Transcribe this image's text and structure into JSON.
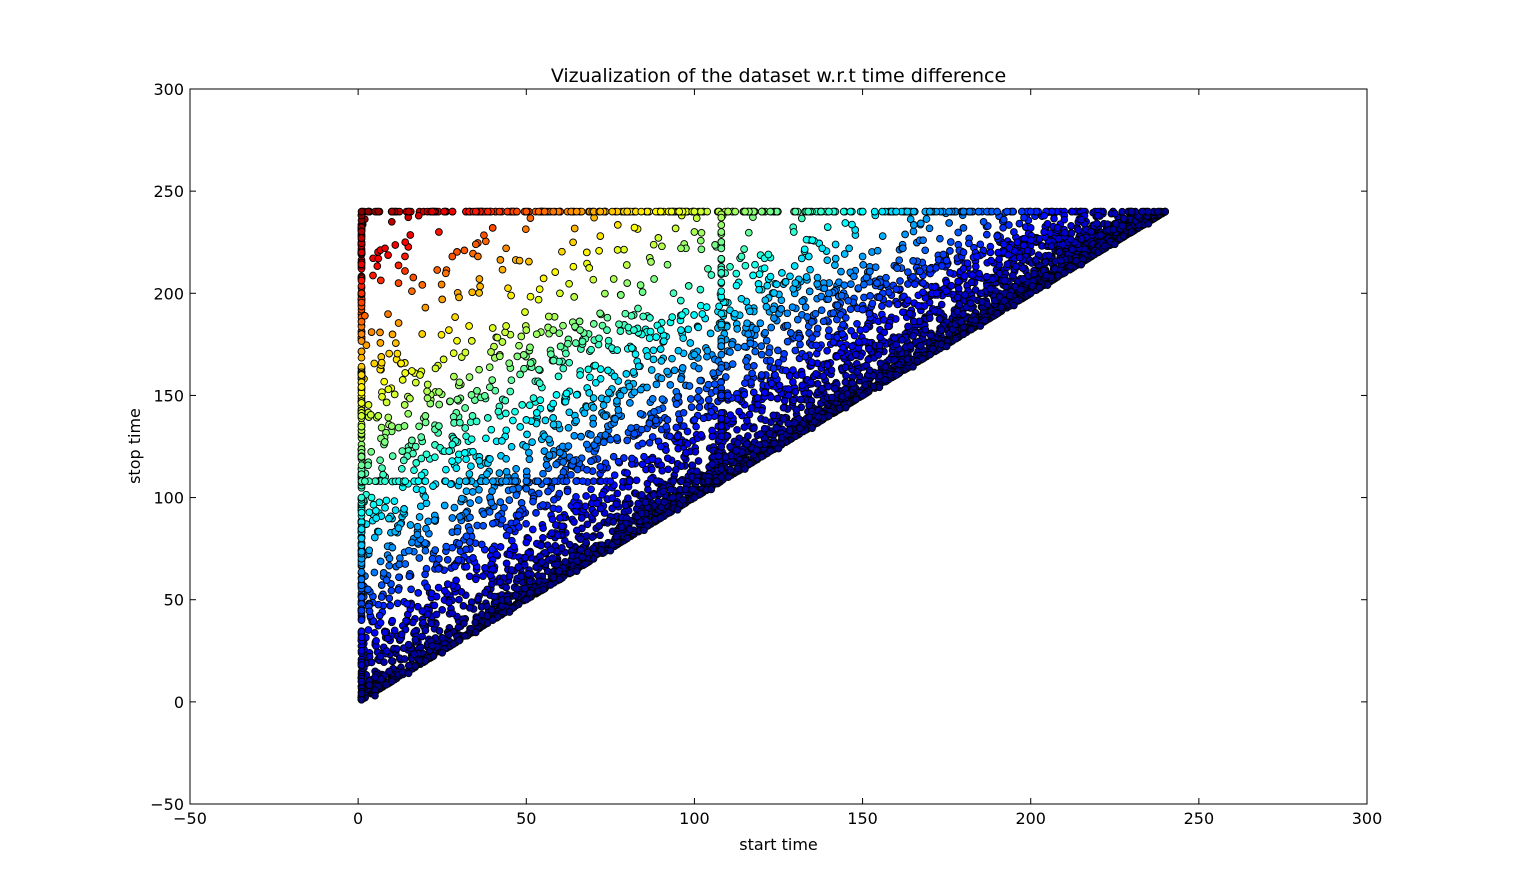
{
  "chart_data": {
    "type": "scatter",
    "title": "Vizualization of the dataset w.r.t time difference",
    "xlabel": "start time",
    "ylabel": "stop time",
    "xlim": [
      -50,
      300
    ],
    "ylim": [
      -50,
      300
    ],
    "xticks": [
      -50,
      0,
      50,
      100,
      150,
      200,
      250,
      300
    ],
    "yticks": [
      -50,
      0,
      50,
      100,
      150,
      200,
      250,
      300
    ],
    "xtick_labels": [
      "−50",
      "0",
      "50",
      "100",
      "150",
      "200",
      "250",
      "300"
    ],
    "ytick_labels": [
      "−50",
      "0",
      "50",
      "100",
      "150",
      "200",
      "250",
      "300"
    ],
    "grid": false,
    "legend": "none",
    "colormap": "jet",
    "color_encoding": "stop time - start time",
    "x_max": 240,
    "y_max": 240,
    "series": [
      {
        "points": [
          [
            1,
            1
          ],
          [
            1,
            10
          ],
          [
            1,
            25
          ],
          [
            1,
            40
          ],
          [
            1,
            60
          ],
          [
            1,
            80
          ],
          [
            1,
            100
          ],
          [
            1,
            108
          ],
          [
            1,
            120
          ],
          [
            1,
            140
          ],
          [
            1,
            160
          ],
          [
            1,
            180
          ],
          [
            1,
            200
          ],
          [
            1,
            220
          ],
          [
            1,
            240
          ],
          [
            3,
            240
          ],
          [
            6,
            240
          ],
          [
            10,
            240
          ],
          [
            15,
            240
          ],
          [
            22,
            240
          ],
          [
            28,
            240
          ],
          [
            35,
            240
          ],
          [
            42,
            240
          ],
          [
            50,
            240
          ],
          [
            58,
            240
          ],
          [
            65,
            240
          ],
          [
            72,
            240
          ],
          [
            80,
            240
          ],
          [
            90,
            240
          ],
          [
            100,
            240
          ],
          [
            110,
            240
          ],
          [
            120,
            240
          ],
          [
            130,
            240
          ],
          [
            140,
            240
          ],
          [
            150,
            240
          ],
          [
            160,
            240
          ],
          [
            170,
            240
          ],
          [
            180,
            240
          ],
          [
            190,
            240
          ],
          [
            200,
            240
          ],
          [
            210,
            240
          ],
          [
            220,
            240
          ],
          [
            230,
            240
          ],
          [
            240,
            240
          ],
          [
            10,
            235
          ],
          [
            14,
            225
          ],
          [
            18,
            238
          ],
          [
            6,
            217
          ],
          [
            8,
            222
          ],
          [
            12,
            205
          ],
          [
            16,
            201
          ],
          [
            4,
            181
          ],
          [
            2,
            189
          ],
          [
            7,
            166
          ],
          [
            9,
            153
          ],
          [
            14,
            161
          ],
          [
            20,
            193
          ],
          [
            24,
            230
          ],
          [
            28,
            218
          ],
          [
            35,
            224
          ],
          [
            40,
            232
          ],
          [
            44,
            222
          ],
          [
            48,
            216
          ],
          [
            27,
            182
          ],
          [
            33,
            184
          ],
          [
            40,
            183
          ],
          [
            44,
            184
          ],
          [
            50,
            182
          ],
          [
            58,
            182
          ],
          [
            66,
            182
          ],
          [
            74,
            182
          ],
          [
            82,
            182
          ],
          [
            90,
            182
          ],
          [
            96,
            182
          ],
          [
            25,
            197
          ],
          [
            30,
            198
          ],
          [
            54,
            202
          ],
          [
            60,
            200
          ],
          [
            64,
            213
          ],
          [
            68,
            220
          ],
          [
            72,
            228
          ],
          [
            76,
            207
          ],
          [
            80,
            205
          ],
          [
            84,
            204
          ],
          [
            88,
            207
          ],
          [
            92,
            214
          ],
          [
            96,
            222
          ],
          [
            100,
            230
          ],
          [
            104,
            212
          ],
          [
            2,
            108
          ],
          [
            8,
            108
          ],
          [
            14,
            108
          ],
          [
            20,
            108
          ],
          [
            26,
            108
          ],
          [
            32,
            108
          ],
          [
            38,
            108
          ],
          [
            44,
            108
          ],
          [
            50,
            108
          ],
          [
            56,
            108
          ],
          [
            62,
            108
          ],
          [
            70,
            108
          ],
          [
            108,
            110
          ],
          [
            108,
            130
          ],
          [
            108,
            150
          ],
          [
            108,
            170
          ],
          [
            108,
            190
          ],
          [
            108,
            210
          ],
          [
            108,
            230
          ],
          [
            6,
            140
          ],
          [
            10,
            135
          ],
          [
            16,
            128
          ],
          [
            20,
            140
          ],
          [
            24,
            135
          ],
          [
            28,
            126
          ],
          [
            34,
            140
          ],
          [
            38,
            129
          ],
          [
            44,
            119
          ],
          [
            50,
            138
          ],
          [
            54,
            156
          ],
          [
            58,
            146
          ],
          [
            62,
            151
          ],
          [
            66,
            160
          ],
          [
            70,
            144
          ],
          [
            74,
            148
          ],
          [
            78,
            150
          ],
          [
            84,
            141
          ],
          [
            88,
            142
          ],
          [
            92,
            138
          ],
          [
            96,
            158
          ],
          [
            100,
            170
          ],
          [
            4,
            100
          ],
          [
            8,
            95
          ],
          [
            12,
            85
          ],
          [
            16,
            78
          ],
          [
            20,
            74
          ],
          [
            24,
            70
          ],
          [
            28,
            90
          ],
          [
            36,
            118
          ],
          [
            42,
            112
          ],
          [
            46,
            104
          ],
          [
            52,
            98
          ],
          [
            56,
            116
          ],
          [
            60,
            122
          ],
          [
            64,
            118
          ],
          [
            68,
            126
          ],
          [
            72,
            115
          ],
          [
            76,
            120
          ],
          [
            80,
            128
          ],
          [
            114,
            218
          ],
          [
            118,
            214
          ],
          [
            122,
            219
          ],
          [
            126,
            210
          ],
          [
            130,
            205
          ],
          [
            134,
            218
          ],
          [
            138,
            222
          ],
          [
            142,
            217
          ],
          [
            146,
            222
          ],
          [
            150,
            218
          ],
          [
            156,
            228
          ],
          [
            162,
            222
          ],
          [
            168,
            226
          ],
          [
            174,
            219
          ],
          [
            180,
            232
          ],
          [
            186,
            235
          ],
          [
            192,
            236
          ],
          [
            198,
            237
          ],
          [
            204,
            238
          ],
          [
            210,
            238
          ],
          [
            216,
            238
          ],
          [
            224,
            239
          ],
          [
            112,
            190
          ],
          [
            116,
            180
          ],
          [
            120,
            170
          ],
          [
            124,
            160
          ],
          [
            128,
            150
          ],
          [
            132,
            160
          ],
          [
            136,
            190
          ],
          [
            140,
            200
          ],
          [
            144,
            180
          ],
          [
            148,
            170
          ],
          [
            152,
            190
          ],
          [
            156,
            200
          ],
          [
            160,
            175
          ],
          [
            164,
            190
          ],
          [
            168,
            205
          ],
          [
            172,
            200
          ],
          [
            176,
            210
          ],
          [
            180,
            212
          ],
          [
            184,
            218
          ],
          [
            188,
            220
          ],
          [
            192,
            224
          ],
          [
            196,
            225
          ],
          [
            200,
            226
          ],
          [
            204,
            230
          ],
          [
            208,
            232
          ],
          [
            212,
            233
          ],
          [
            216,
            234
          ],
          [
            5,
            3
          ],
          [
            5,
            12
          ],
          [
            10,
            10
          ],
          [
            10,
            20
          ],
          [
            15,
            14
          ],
          [
            15,
            28
          ],
          [
            20,
            20
          ],
          [
            20,
            35
          ],
          [
            25,
            24
          ],
          [
            25,
            45
          ],
          [
            30,
            30
          ],
          [
            30,
            50
          ],
          [
            35,
            34
          ],
          [
            35,
            60
          ],
          [
            40,
            40
          ],
          [
            40,
            65
          ],
          [
            45,
            44
          ],
          [
            45,
            72
          ],
          [
            50,
            50
          ],
          [
            50,
            78
          ],
          [
            55,
            55
          ],
          [
            55,
            85
          ],
          [
            60,
            60
          ],
          [
            60,
            90
          ],
          [
            65,
            64
          ],
          [
            65,
            96
          ],
          [
            70,
            70
          ],
          [
            70,
            100
          ],
          [
            75,
            74
          ],
          [
            75,
            108
          ],
          [
            80,
            80
          ],
          [
            80,
            112
          ],
          [
            85,
            84
          ],
          [
            85,
            120
          ],
          [
            90,
            90
          ],
          [
            90,
            125
          ],
          [
            95,
            94
          ],
          [
            95,
            130
          ],
          [
            100,
            100
          ],
          [
            100,
            138
          ],
          [
            105,
            104
          ],
          [
            105,
            142
          ],
          [
            110,
            110
          ],
          [
            110,
            150
          ],
          [
            115,
            114
          ],
          [
            115,
            156
          ],
          [
            120,
            120
          ],
          [
            120,
            160
          ],
          [
            125,
            124
          ],
          [
            125,
            166
          ],
          [
            130,
            130
          ],
          [
            130,
            172
          ],
          [
            135,
            134
          ],
          [
            135,
            178
          ],
          [
            140,
            140
          ],
          [
            140,
            182
          ],
          [
            145,
            144
          ],
          [
            145,
            188
          ],
          [
            150,
            150
          ],
          [
            150,
            192
          ],
          [
            155,
            154
          ],
          [
            155,
            198
          ],
          [
            160,
            160
          ],
          [
            160,
            202
          ],
          [
            165,
            164
          ],
          [
            165,
            208
          ],
          [
            170,
            170
          ],
          [
            170,
            212
          ],
          [
            175,
            174
          ],
          [
            175,
            216
          ],
          [
            180,
            180
          ],
          [
            180,
            220
          ],
          [
            185,
            184
          ],
          [
            185,
            224
          ],
          [
            190,
            190
          ],
          [
            190,
            228
          ],
          [
            195,
            194
          ],
          [
            195,
            230
          ],
          [
            200,
            200
          ],
          [
            200,
            232
          ],
          [
            205,
            204
          ],
          [
            205,
            234
          ],
          [
            210,
            210
          ],
          [
            210,
            236
          ],
          [
            215,
            214
          ],
          [
            215,
            236
          ],
          [
            220,
            220
          ],
          [
            220,
            238
          ],
          [
            225,
            224
          ],
          [
            225,
            239
          ],
          [
            230,
            230
          ],
          [
            235,
            234
          ],
          [
            240,
            240
          ]
        ]
      }
    ]
  }
}
